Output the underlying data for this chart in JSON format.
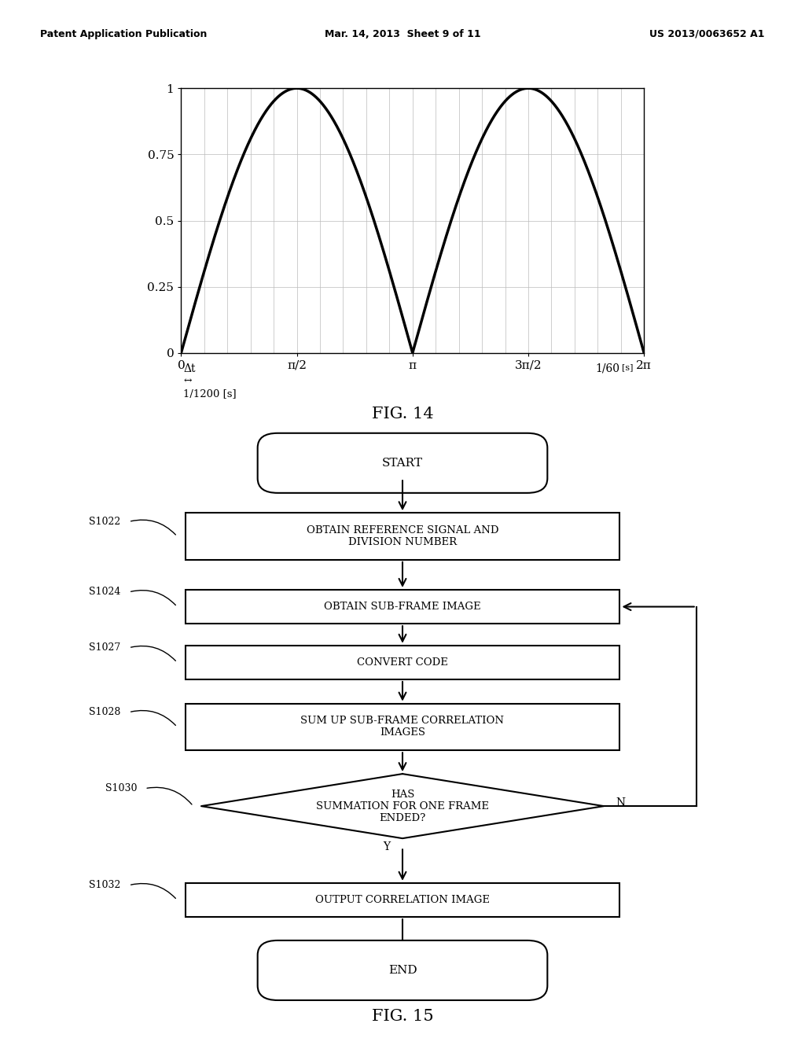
{
  "header_left": "Patent Application Publication",
  "header_mid": "Mar. 14, 2013  Sheet 9 of 11",
  "header_right": "US 2013/0063652 A1",
  "fig14_title": "FIG. 14",
  "fig15_title": "FIG. 15",
  "graph_xticks": [
    0,
    1.5707963,
    3.1415926,
    4.7123889,
    6.2831853
  ],
  "graph_xticklabels": [
    "0",
    "π/2",
    "π",
    "3π/2",
    "2π"
  ],
  "graph_yticks": [
    0,
    0.25,
    0.5,
    0.75,
    1
  ],
  "graph_yticklabels": [
    "0",
    "0.25",
    "0.5",
    "0.75",
    "1"
  ],
  "annotation_delta_t": "Δt",
  "annotation_arrow": "↔",
  "annotation_1_1200": "1/1200 [s]",
  "annotation_1_60": "1/60",
  "annotation_1_60_sub": "[s]",
  "background_color": "#ffffff"
}
